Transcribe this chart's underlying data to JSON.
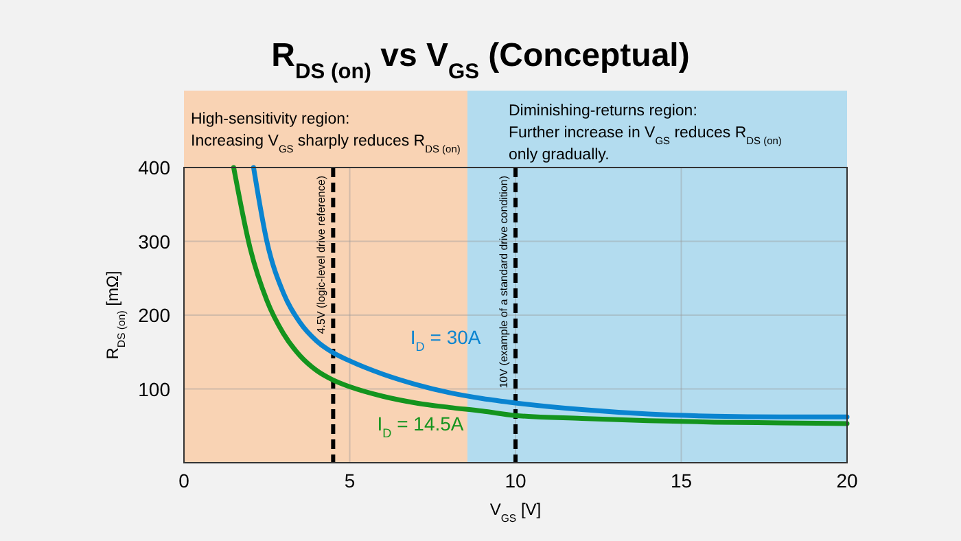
{
  "chart_data": {
    "type": "line",
    "title": "R$_{DS (on)}$ vs V$_{GS}$ (Conceptual)",
    "xlabel": "V$_{GS}$ [V]",
    "ylabel": "R$_{DS (on)}$ [mΩ]",
    "xlim": [
      0,
      20
    ],
    "ylim": [
      0,
      400
    ],
    "xticks": [
      0,
      5,
      10,
      15,
      20
    ],
    "yticks": [
      {
        "value": 0,
        "label": null
      },
      100,
      200,
      300,
      400
    ],
    "grid": true,
    "series": [
      {
        "name": "I$_{D}$ = 30A",
        "color": "#0a84d0",
        "x": [
          2.1,
          2.5,
          3,
          3.5,
          4,
          4.5,
          5,
          6,
          7,
          8,
          9,
          10,
          12,
          14,
          16,
          18,
          20
        ],
        "values": [
          400,
          300,
          230,
          190,
          165,
          149,
          138,
          120,
          106,
          95,
          87,
          81,
          72,
          66,
          63,
          62,
          62
        ]
      },
      {
        "name": "I$_{D}$ = 14.5A",
        "color": "#14941e",
        "x": [
          1.5,
          2,
          2.5,
          3,
          3.5,
          4,
          4.5,
          5,
          6,
          7,
          8,
          9,
          10,
          12,
          14,
          16,
          18,
          20
        ],
        "values": [
          400,
          290,
          220,
          175,
          145,
          125,
          112,
          103,
          90,
          81,
          75,
          70,
          64,
          60,
          57,
          55,
          54,
          53
        ]
      }
    ],
    "bands": [
      {
        "axis": "x",
        "from": 0,
        "to": 8.55,
        "color": "#f9d3b4",
        "label": "High-sensitivity region:\nIncreasing V$_{GS}$ sharply reduces R$_{DS (on)}$"
      },
      {
        "axis": "x",
        "from": 8.55,
        "to": 20,
        "color": "#b3dcef",
        "label": "Diminishing-returns region:\nFurther increase in V$_{GS}$ reduces R$_{DS (on)}$\nonly gradually."
      }
    ],
    "ref_lines": [
      {
        "axis": "x",
        "value": 4.5,
        "label": "4.5V (logic-level drive reference)",
        "color": "#000000",
        "line_style": "dashed"
      },
      {
        "axis": "x",
        "value": 10,
        "label": "10V (example of a standard drive condition)",
        "color": "#000000",
        "line_style": "dashed"
      }
    ]
  }
}
